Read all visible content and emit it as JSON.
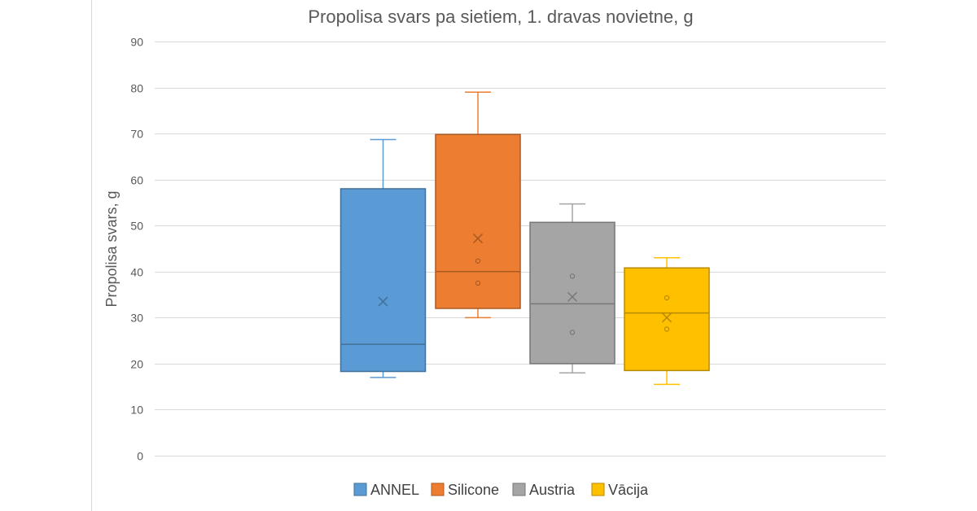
{
  "chart_data": {
    "type": "boxplot",
    "title": "Propolisa svars pa sietiem, 1. dravas novietne, g",
    "xlabel": "",
    "ylabel": "Propolisa svars, g",
    "ylim": [
      0,
      90
    ],
    "yticks": [
      0,
      10,
      20,
      30,
      40,
      50,
      60,
      70,
      80,
      90
    ],
    "grid": true,
    "legend_position": "bottom",
    "series": [
      {
        "name": "ANNEL",
        "color": "#5b9bd5",
        "min": 17,
        "q1": 18.3,
        "median": 24.2,
        "q3": 58,
        "max": 68.7,
        "mean": 33.5,
        "points": []
      },
      {
        "name": "Silicone",
        "color": "#ed7d31",
        "min": 30,
        "q1": 32,
        "median": 40,
        "q3": 69.8,
        "max": 79,
        "mean": 47.2,
        "points": [
          42.3,
          37.5
        ]
      },
      {
        "name": "Austria",
        "color": "#a5a5a5",
        "min": 18,
        "q1": 20,
        "median": 33,
        "q3": 50.7,
        "max": 54.7,
        "mean": 34.5,
        "points": [
          39,
          26.8
        ]
      },
      {
        "name": "Vācija",
        "color": "#ffc000",
        "min": 15.5,
        "q1": 18.5,
        "median": 31,
        "q3": 40.8,
        "max": 43,
        "mean": 30,
        "points": [
          34.3,
          27.5
        ]
      }
    ]
  }
}
